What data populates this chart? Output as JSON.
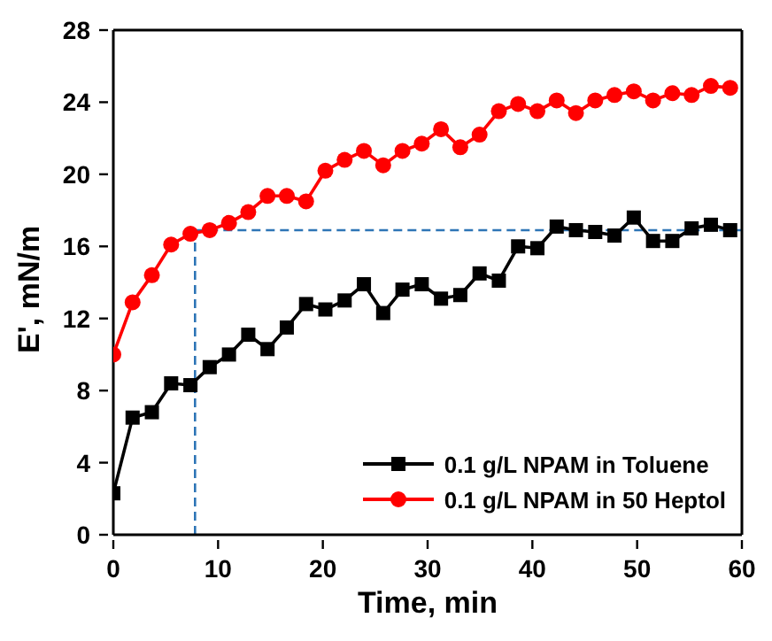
{
  "chart_data": {
    "type": "line",
    "xlabel": "Time, min",
    "ylabel": "E', mN/m",
    "xlim": [
      0,
      60
    ],
    "xticks": [
      0,
      10,
      20,
      30,
      40,
      50,
      60
    ],
    "ylim": [
      0,
      28
    ],
    "yticks": [
      0,
      4,
      8,
      12,
      16,
      20,
      24,
      28
    ],
    "grid": false,
    "legend": "bottom right",
    "x": [
      0,
      1.84,
      3.68,
      5.52,
      7.36,
      9.2,
      11.04,
      12.88,
      14.72,
      16.56,
      18.4,
      20.24,
      22.08,
      23.92,
      25.76,
      27.6,
      29.44,
      31.28,
      33.12,
      34.96,
      36.8,
      38.64,
      40.48,
      42.32,
      44.16,
      46,
      47.84,
      49.68,
      51.52,
      53.36,
      55.2,
      57.04,
      58.88
    ],
    "series": [
      {
        "name": "0.1 g/L NPAM in Toluene",
        "color": "#000000",
        "marker": "square",
        "values": [
          2.3,
          6.5,
          6.8,
          8.4,
          8.3,
          9.3,
          10,
          11.1,
          10.3,
          11.5,
          12.8,
          12.5,
          13,
          13.9,
          12.3,
          13.6,
          13.9,
          13.1,
          13.3,
          14.5,
          14.1,
          16,
          15.9,
          17.1,
          16.9,
          16.8,
          16.6,
          17.6,
          16.3,
          16.3,
          17,
          17.2,
          16.9
        ]
      },
      {
        "name": "0.1 g/L NPAM in 50 Heptol",
        "color": "#ff0000",
        "marker": "circle",
        "values": [
          10,
          12.9,
          14.4,
          16.1,
          16.7,
          16.9,
          17.3,
          17.9,
          18.8,
          18.8,
          18.5,
          20.2,
          20.8,
          21.3,
          20.5,
          21.3,
          21.7,
          22.5,
          21.5,
          22.2,
          23.5,
          23.9,
          23.5,
          24.1,
          23.4,
          24.1,
          24.4,
          24.6,
          24.1,
          24.5,
          24.4,
          24.9,
          24.8
        ]
      }
    ],
    "ref_lines": [
      {
        "axis": "x",
        "value": 7.8,
        "color": "#2e75b6",
        "line_style": "dashed"
      },
      {
        "axis": "y",
        "value": 16.9,
        "color": "#2e75b6",
        "line_style": "dashed"
      }
    ]
  }
}
